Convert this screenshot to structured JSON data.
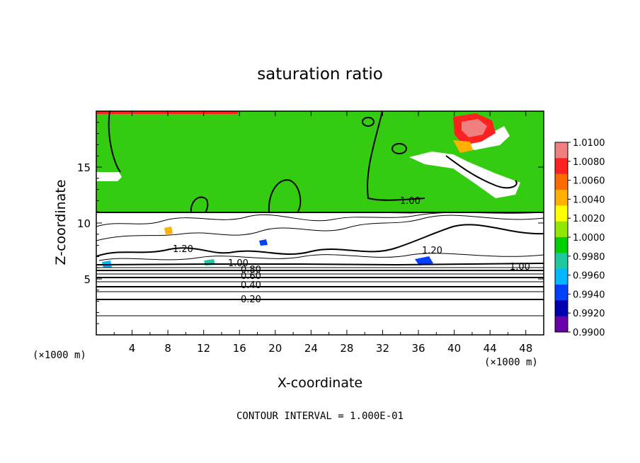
{
  "chart_data": {
    "type": "heatmap",
    "title": "saturation ratio",
    "xlabel": "X-coordinate",
    "ylabel": "Z-coordinate",
    "x_unit_left": "(×1000 m)",
    "x_unit_right": "(×1000 m)",
    "xlim": [
      0,
      50
    ],
    "ylim": [
      0,
      20
    ],
    "x_ticks": [
      "4",
      "8",
      "12",
      "16",
      "20",
      "24",
      "28",
      "32",
      "36",
      "40",
      "44",
      "48"
    ],
    "y_ticks": [
      "5",
      "10",
      "15"
    ],
    "footer": "CONTOUR INTERVAL = 1.000E-01",
    "colorbar": {
      "labels": [
        "1.0100",
        "1.0080",
        "1.0060",
        "1.0040",
        "1.0020",
        "1.0000",
        "0.9980",
        "0.9960",
        "0.9940",
        "0.9920",
        "0.9900"
      ],
      "colors": [
        "#f08080",
        "#ff2020",
        "#ff6a00",
        "#ffb000",
        "#ffff00",
        "#90e800",
        "#00d000",
        "#20c8a0",
        "#00b8ff",
        "#0040ff",
        "#0000b0",
        "#6a00a8"
      ]
    },
    "contour_labels": [
      "1.00",
      "1.20",
      "1.20",
      "1.00",
      "0.80",
      "0.60",
      "0.40",
      "0.20",
      "1.00"
    ],
    "contour_levels": [
      0.2,
      0.4,
      0.6,
      0.8,
      1.0,
      1.2
    ],
    "saturated_region": {
      "z_bottom": 11,
      "z_top": 20,
      "value": 1.0
    }
  }
}
